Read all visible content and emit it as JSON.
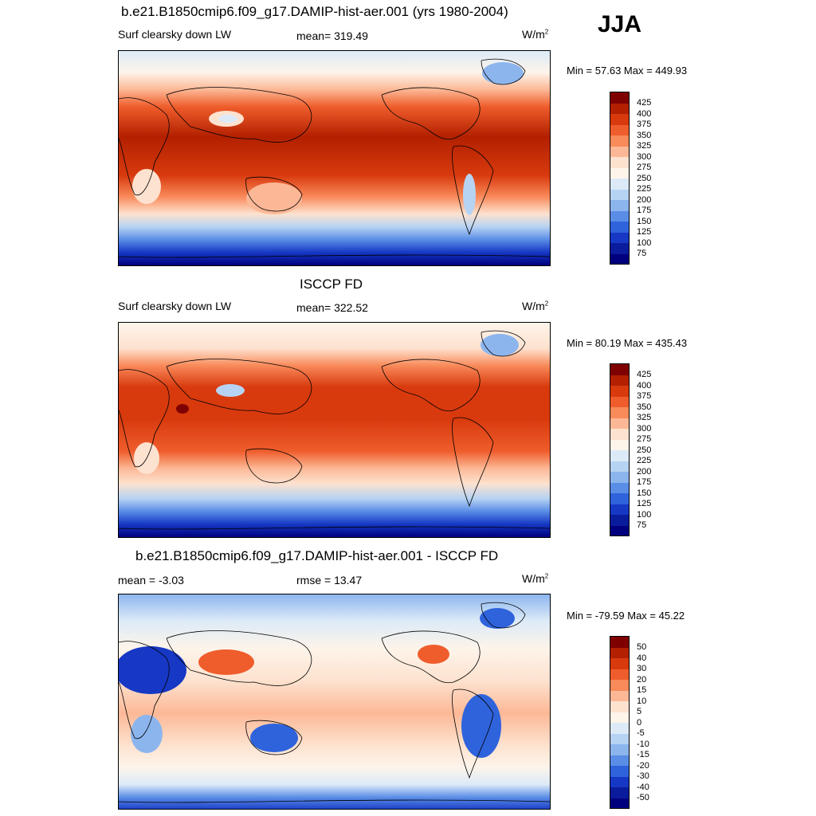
{
  "season": "JJA",
  "panels": [
    {
      "title": "b.e21.B1850cmip6.f09_g17.DAMIP-hist-aer.001 (yrs 1980-2004)",
      "left_label": "Surf clearsky down LW",
      "center_label": "mean= 319.49",
      "units": "W/m",
      "units_sup": "2",
      "minmax": "Min =  57.63 Max = 449.93",
      "colorbar_labels": [
        "425",
        "400",
        "375",
        "350",
        "325",
        "300",
        "275",
        "250",
        "225",
        "200",
        "175",
        "150",
        "125",
        "100",
        "75"
      ],
      "map_kind": "field_model"
    },
    {
      "title": "ISCCP FD",
      "left_label": "Surf clearsky down LW",
      "center_label": "mean= 322.52",
      "units": "W/m",
      "units_sup": "2",
      "minmax": "Min =  80.19 Max = 435.43",
      "colorbar_labels": [
        "425",
        "400",
        "375",
        "350",
        "325",
        "300",
        "275",
        "250",
        "225",
        "200",
        "175",
        "150",
        "125",
        "100",
        "75"
      ],
      "map_kind": "field_obs"
    },
    {
      "title": "b.e21.B1850cmip6.f09_g17.DAMIP-hist-aer.001 - ISCCP FD",
      "left_label": "mean =  -3.03",
      "center_label": "rmse =  13.47",
      "units": "W/m",
      "units_sup": "2",
      "minmax": "Min = -79.59 Max =  45.22",
      "colorbar_labels": [
        "50",
        "40",
        "30",
        "20",
        "15",
        "10",
        "5",
        "0",
        "-5",
        "-10",
        "-15",
        "-20",
        "-30",
        "-40",
        "-50"
      ],
      "map_kind": "difference"
    }
  ],
  "colors": {
    "field_scale": [
      "#7f0000",
      "#b22000",
      "#d83a0e",
      "#ef5d2c",
      "#f98a5a",
      "#fcb896",
      "#fde2cf",
      "#fdf4ea",
      "#dceaf8",
      "#b7d3f3",
      "#8cb5ee",
      "#5a8de6",
      "#2f63dc",
      "#1638c4",
      "#0a1c9c",
      "#00007f"
    ],
    "diff_scale": [
      "#7f0000",
      "#b22000",
      "#d83a0e",
      "#ef5d2c",
      "#f98a5a",
      "#fcb896",
      "#fde2cf",
      "#fdf4ea",
      "#dceaf8",
      "#b7d3f3",
      "#8cb5ee",
      "#5a8de6",
      "#2f63dc",
      "#1638c4",
      "#0a1c9c",
      "#00007f"
    ]
  }
}
